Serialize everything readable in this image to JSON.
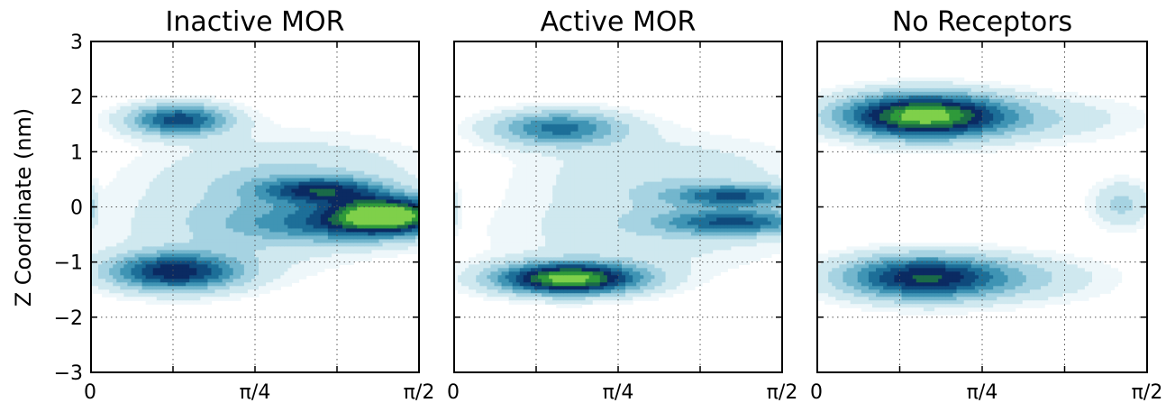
{
  "chart_data": {
    "type": "heatmap",
    "subtype": "filled-contour density",
    "ylabel": "Z Coordinate (nm)",
    "ylim": [
      -3,
      3
    ],
    "yticks": [
      3,
      2,
      1,
      0,
      -1,
      -2,
      -3
    ],
    "ytick_labels": [
      "3",
      "2",
      "1",
      "0",
      "−1",
      "−2",
      "−3"
    ],
    "xlim": [
      0,
      1.5708
    ],
    "xticks": [
      0,
      0.7854,
      1.5708
    ],
    "xtick_labels": [
      "0",
      "π/4",
      "π/2"
    ],
    "grid": true,
    "colormap": [
      "#eef7fa",
      "#cfe8ef",
      "#a6d3e2",
      "#73b6cd",
      "#3f94b4",
      "#1d6f98",
      "#0f4a7c",
      "#0b2a62",
      "#1a6b48",
      "#2f9a3a",
      "#7fd04a"
    ],
    "panels": [
      {
        "title": "Inactive MOR",
        "density_peaks": [
          {
            "x": 0.42,
            "z": 1.58,
            "sx": 0.17,
            "sz": 0.2,
            "amp": 0.62
          },
          {
            "x": 0.4,
            "z": -1.18,
            "sx": 0.22,
            "sz": 0.24,
            "amp": 0.7
          },
          {
            "x": 1.42,
            "z": -0.14,
            "sx": 0.18,
            "sz": 0.22,
            "amp": 0.9
          },
          {
            "x": 1.1,
            "z": 0.3,
            "sx": 0.2,
            "sz": 0.16,
            "amp": 0.55
          },
          {
            "x": 1.2,
            "z": -0.3,
            "sx": 0.35,
            "sz": 0.25,
            "amp": 0.4
          },
          {
            "x": 0.95,
            "z": 0.6,
            "sx": 0.45,
            "sz": 0.5,
            "amp": 0.18
          },
          {
            "x": 0.7,
            "z": -0.4,
            "sx": 0.45,
            "sz": 0.6,
            "amp": 0.15
          },
          {
            "x": 0.0,
            "z": 0.0,
            "sx": 0.02,
            "sz": 0.25,
            "amp": 0.2
          }
        ]
      },
      {
        "title": "Active MOR",
        "density_peaks": [
          {
            "x": 0.55,
            "z": -1.3,
            "sx": 0.24,
            "sz": 0.2,
            "amp": 1.0
          },
          {
            "x": 0.5,
            "z": 1.43,
            "sx": 0.22,
            "sz": 0.22,
            "amp": 0.5
          },
          {
            "x": 1.35,
            "z": 0.2,
            "sx": 0.22,
            "sz": 0.14,
            "amp": 0.48
          },
          {
            "x": 1.35,
            "z": -0.28,
            "sx": 0.25,
            "sz": 0.16,
            "amp": 0.5
          },
          {
            "x": 1.0,
            "z": 0.6,
            "sx": 0.45,
            "sz": 0.5,
            "amp": 0.16
          },
          {
            "x": 0.9,
            "z": -0.5,
            "sx": 0.5,
            "sz": 0.5,
            "amp": 0.14
          },
          {
            "x": 0.0,
            "z": 0.0,
            "sx": 0.02,
            "sz": 0.25,
            "amp": 0.15
          }
        ]
      },
      {
        "title": "No Receptors",
        "density_peaks": [
          {
            "x": 0.5,
            "z": 1.65,
            "sx": 0.27,
            "sz": 0.28,
            "amp": 1.0
          },
          {
            "x": 0.5,
            "z": -1.28,
            "sx": 0.27,
            "sz": 0.28,
            "amp": 0.75
          },
          {
            "x": 1.05,
            "z": 1.6,
            "sx": 0.35,
            "sz": 0.3,
            "amp": 0.15
          },
          {
            "x": 1.45,
            "z": 0.05,
            "sx": 0.1,
            "sz": 0.3,
            "amp": 0.22
          },
          {
            "x": 1.0,
            "z": -1.3,
            "sx": 0.3,
            "sz": 0.3,
            "amp": 0.15
          }
        ]
      }
    ]
  }
}
